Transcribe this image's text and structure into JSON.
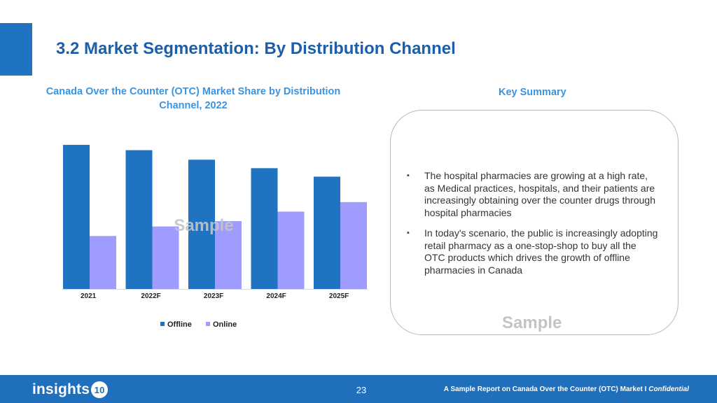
{
  "header": {
    "title": "3.2 Market Segmentation: By Distribution Channel"
  },
  "chart_section": {
    "title": "Canada Over the Counter (OTC) Market Share by Distribution Channel, 2022",
    "watermark": "Sample"
  },
  "chart_data": {
    "type": "bar",
    "categories": [
      "2021",
      "2022F",
      "2023F",
      "2024F",
      "2025F"
    ],
    "series": [
      {
        "name": "Offline",
        "color": "#1f73c1",
        "values": [
          68,
          65.5,
          61,
          57,
          53
        ]
      },
      {
        "name": "Online",
        "color": "#9e9cff",
        "values": [
          25,
          29.5,
          32,
          36.5,
          41
        ]
      }
    ],
    "title": "Canada Over the Counter (OTC) Market Share by Distribution Channel, 2022",
    "xlabel": "",
    "ylabel": "",
    "ylim": [
      0,
      70
    ],
    "grid": false,
    "legend": "bottom"
  },
  "summary": {
    "title": "Key Summary",
    "bullet_icon": "small-square-bullet",
    "bullets": [
      "The hospital pharmacies are growing at a high rate, as Medical practices, hospitals, and their patients are increasingly obtaining over the counter drugs through hospital pharmacies",
      "In today's scenario, the public is increasingly adopting retail pharmacy as a one-stop-shop to buy all the OTC products which drives the growth of offline pharmacies in Canada"
    ],
    "watermark": "Sample"
  },
  "footer": {
    "logo_text": "insights",
    "logo_badge": "10",
    "page_number": "23",
    "report_text": "A Sample Report on Canada Over the Counter (OTC) Market I ",
    "confidential": "Confidential"
  }
}
